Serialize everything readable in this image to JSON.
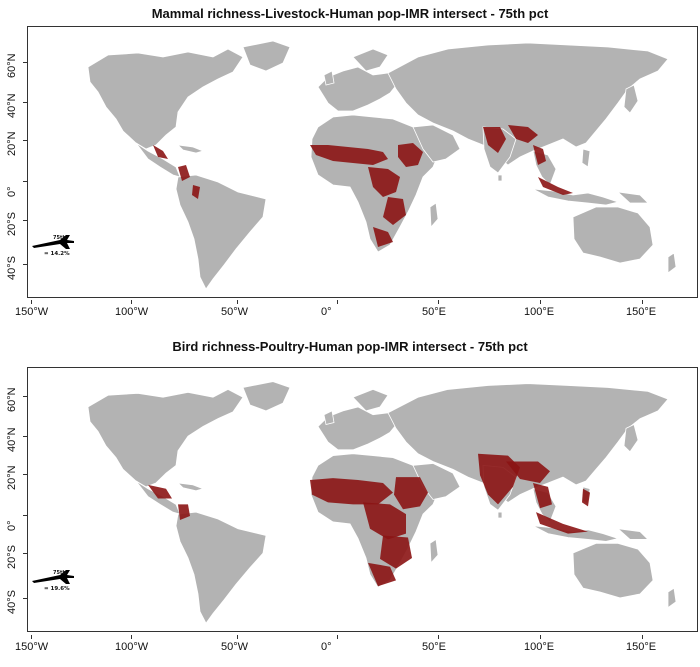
{
  "panels": [
    {
      "title": "Mammal richness-Livestock-Human pop-IMR intersect - 75th pct",
      "legend_top": "75th",
      "legend_pct": "= 14.2%",
      "hotspot_level": "mammal"
    },
    {
      "title": "Bird richness-Poultry-Human pop-IMR intersect - 75th pct",
      "legend_top": "75th",
      "legend_pct": "= 19.6%",
      "hotspot_level": "bird"
    }
  ],
  "axes": {
    "lat_ticks": [
      "60°N",
      "40°N",
      "20°N",
      "0°",
      "20°S",
      "40°S"
    ],
    "lon_ticks": [
      "150°W",
      "100°W",
      "50°W",
      "0°",
      "50°E",
      "100°E",
      "150°E"
    ]
  },
  "colors": {
    "land": "#b3b3b3",
    "borders": "#ffffff",
    "hotspot": "#8b1414",
    "ocean": "#ffffff"
  },
  "icons": {
    "legend": "airplane-icon"
  }
}
